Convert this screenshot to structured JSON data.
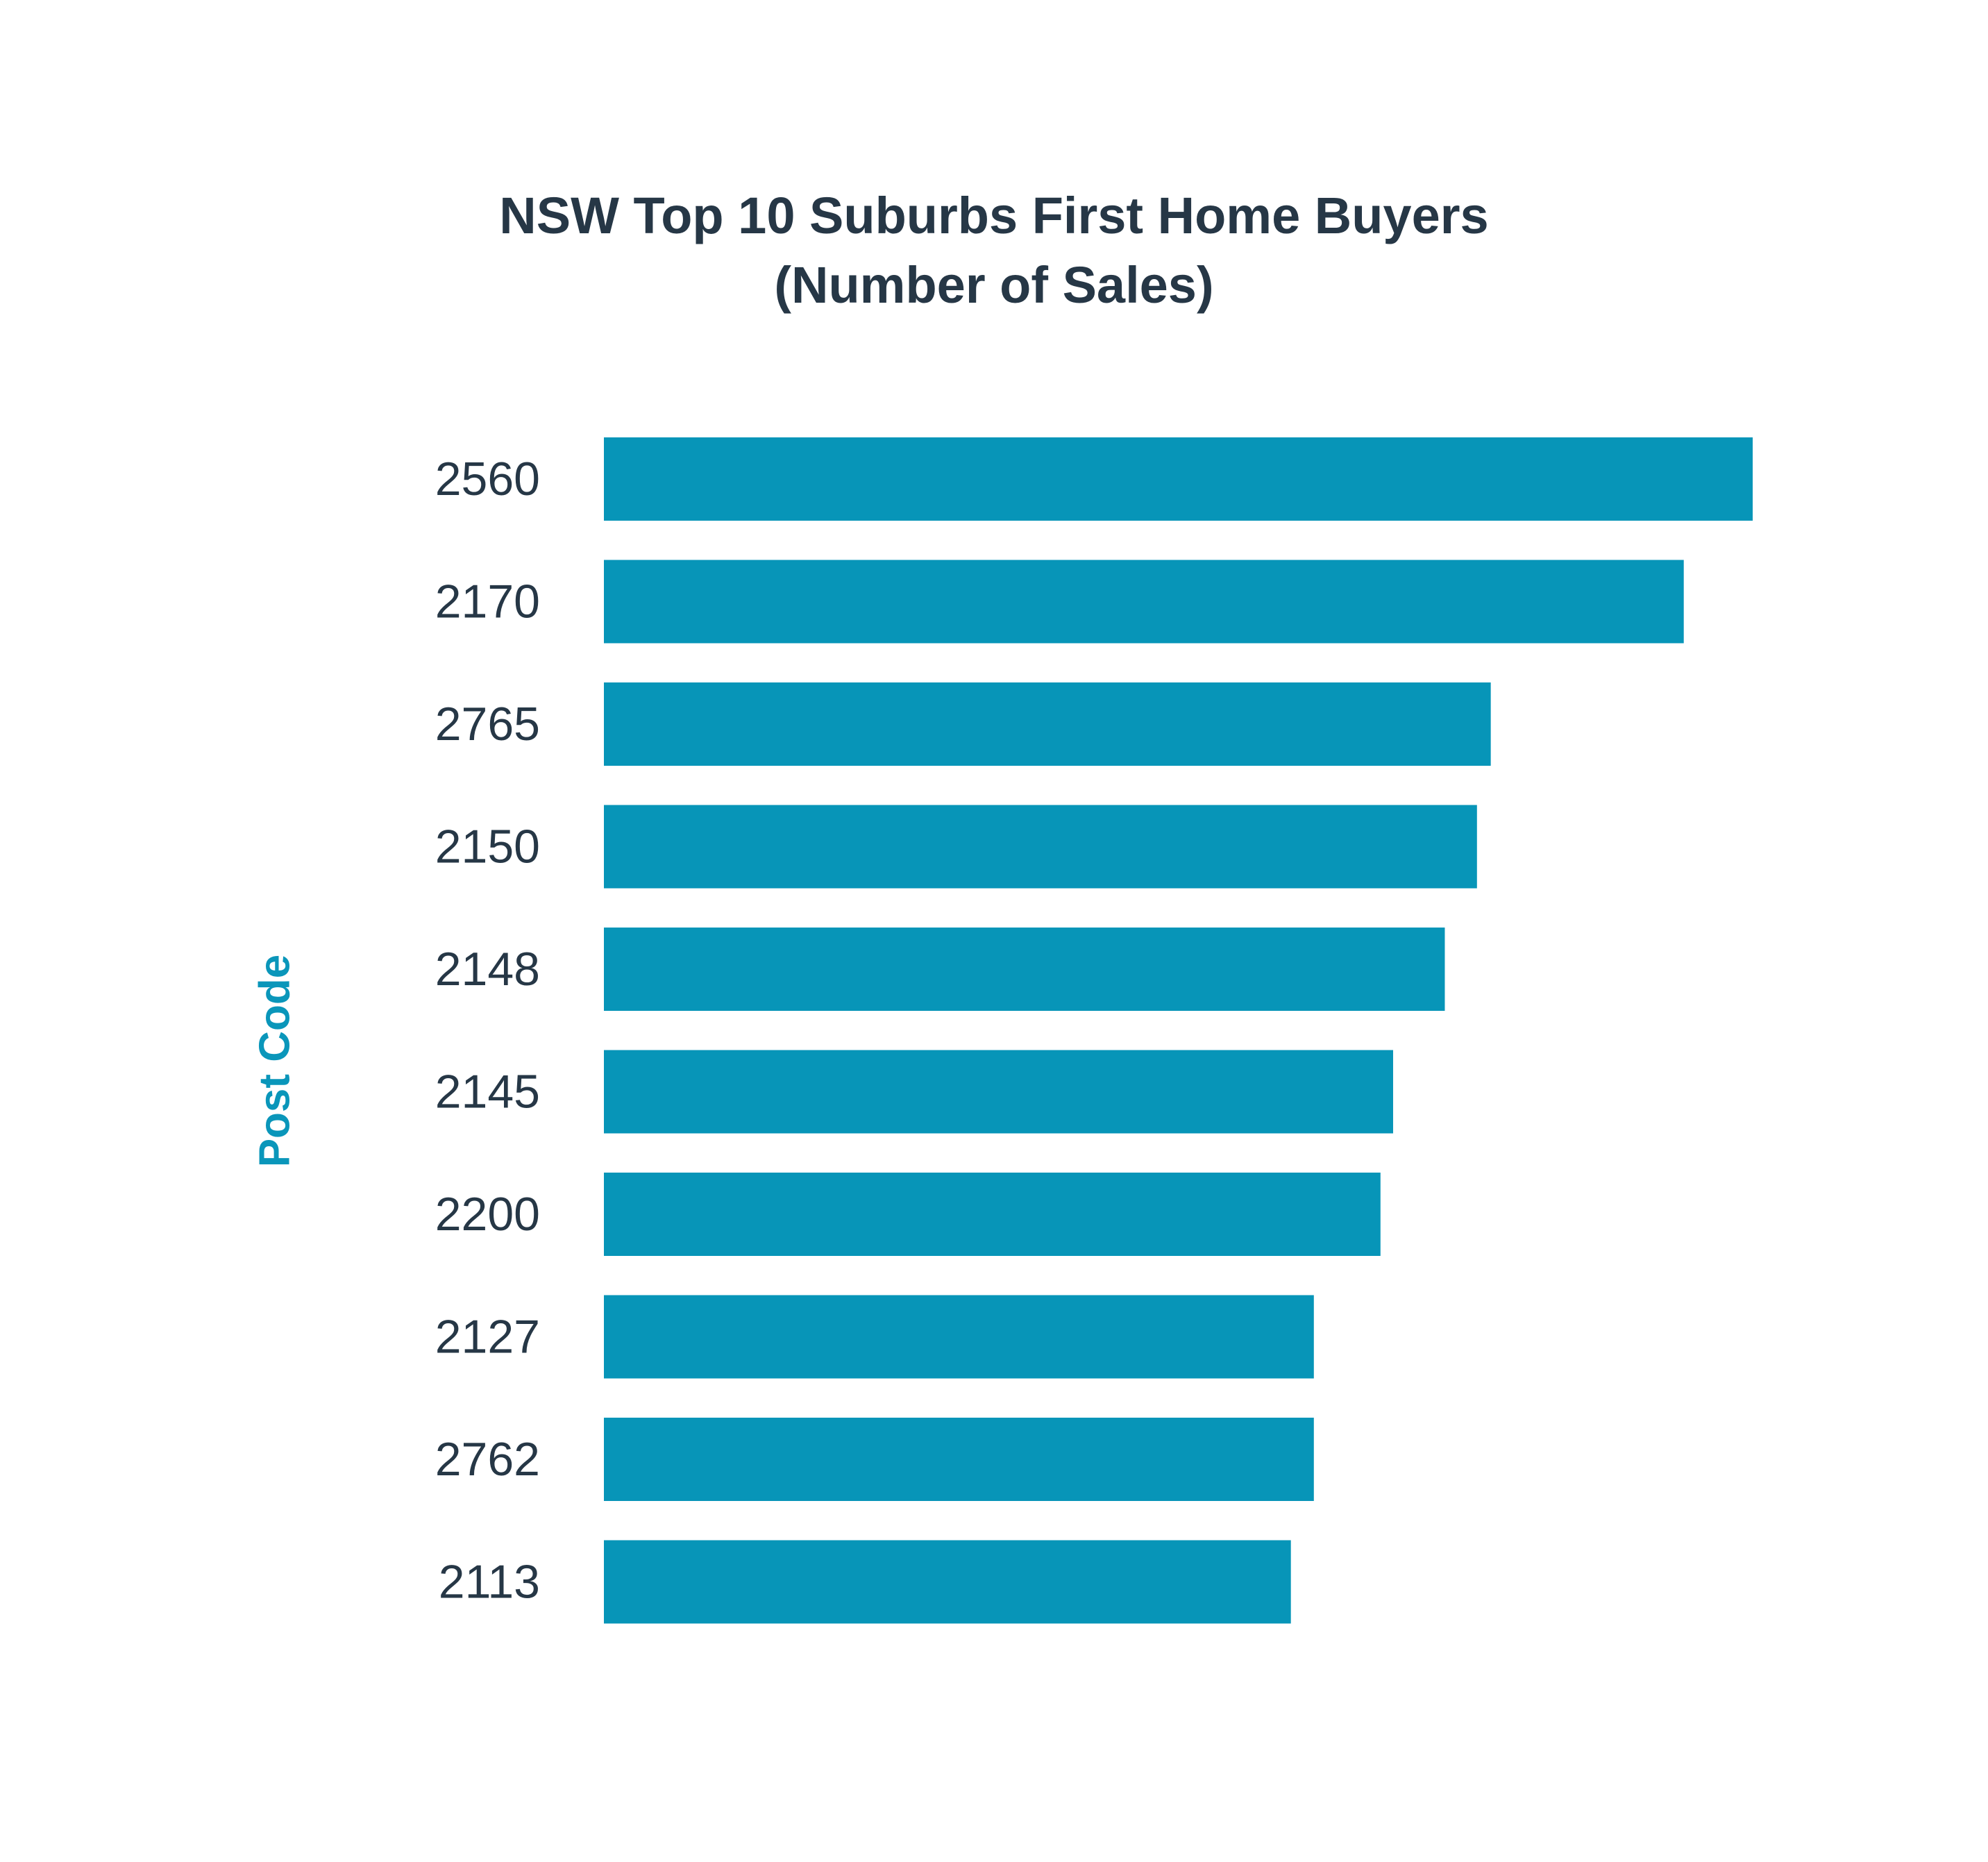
{
  "chart_data": {
    "type": "bar",
    "orientation": "horizontal",
    "title": "NSW Top 10 Suburbs First Home Buyers",
    "subtitle": "(Number of Sales)",
    "xlabel": "",
    "ylabel": "Post Code",
    "categories": [
      "2560",
      "2170",
      "2765",
      "2150",
      "2148",
      "2145",
      "2200",
      "2127",
      "2762",
      "2113"
    ],
    "values": [
      100,
      94,
      77.2,
      76,
      73.2,
      68.7,
      67.6,
      61.8,
      61.8,
      59.8
    ],
    "xlim": [
      0,
      100
    ],
    "grid": false,
    "legend": "none",
    "bar_color": "#0795b8",
    "label_color": "#263746",
    "axis_label_color": "#0a96ba"
  }
}
